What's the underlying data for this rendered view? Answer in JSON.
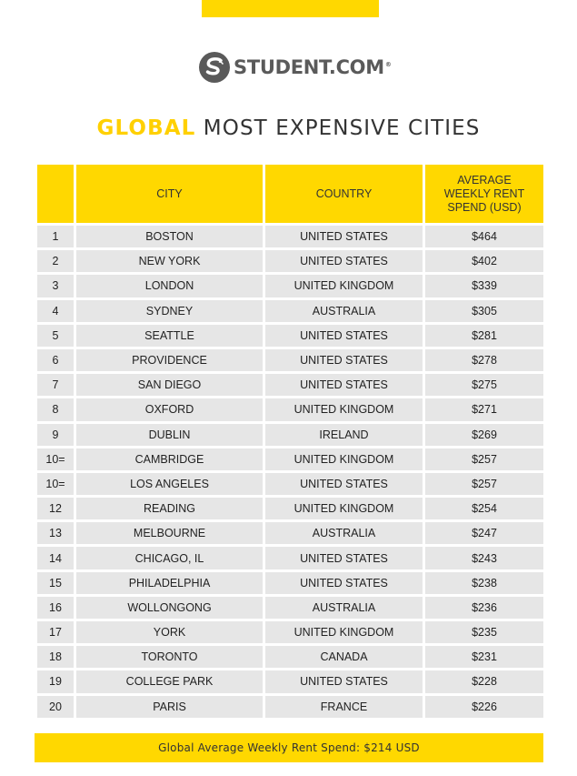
{
  "brand": {
    "logo_text": "STUDENT.COM",
    "registered_mark": "®",
    "accent_color": "#FFD800"
  },
  "title": {
    "accent": "GLOBAL",
    "rest": "MOST EXPENSIVE CITIES"
  },
  "table": {
    "headers": {
      "rank": "",
      "city": "CITY",
      "country": "COUNTRY",
      "rent_line1": "AVERAGE",
      "rent_line2": "WEEKLY RENT",
      "rent_line3": "SPEND (USD)"
    },
    "rows": [
      {
        "rank": "1",
        "city": "BOSTON",
        "country": "UNITED STATES",
        "rent": "$464"
      },
      {
        "rank": "2",
        "city": "NEW YORK",
        "country": "UNITED STATES",
        "rent": "$402"
      },
      {
        "rank": "3",
        "city": "LONDON",
        "country": "UNITED KINGDOM",
        "rent": "$339"
      },
      {
        "rank": "4",
        "city": "SYDNEY",
        "country": "AUSTRALIA",
        "rent": "$305"
      },
      {
        "rank": "5",
        "city": "SEATTLE",
        "country": "UNITED STATES",
        "rent": "$281"
      },
      {
        "rank": "6",
        "city": "PROVIDENCE",
        "country": "UNITED STATES",
        "rent": "$278"
      },
      {
        "rank": "7",
        "city": "SAN DIEGO",
        "country": "UNITED STATES",
        "rent": "$275"
      },
      {
        "rank": "8",
        "city": "OXFORD",
        "country": "UNITED KINGDOM",
        "rent": "$271"
      },
      {
        "rank": "9",
        "city": "DUBLIN",
        "country": "IRELAND",
        "rent": "$269"
      },
      {
        "rank": "10=",
        "city": "CAMBRIDGE",
        "country": "UNITED KINGDOM",
        "rent": "$257"
      },
      {
        "rank": "10=",
        "city": "LOS ANGELES",
        "country": "UNITED STATES",
        "rent": "$257"
      },
      {
        "rank": "12",
        "city": "READING",
        "country": "UNITED KINGDOM",
        "rent": "$254"
      },
      {
        "rank": "13",
        "city": "MELBOURNE",
        "country": "AUSTRALIA",
        "rent": "$247"
      },
      {
        "rank": "14",
        "city": "CHICAGO, IL",
        "country": "UNITED STATES",
        "rent": "$243"
      },
      {
        "rank": "15",
        "city": "PHILADELPHIA",
        "country": "UNITED STATES",
        "rent": "$238"
      },
      {
        "rank": "16",
        "city": "WOLLONGONG",
        "country": "AUSTRALIA",
        "rent": "$236"
      },
      {
        "rank": "17",
        "city": "YORK",
        "country": "UNITED KINGDOM",
        "rent": "$235"
      },
      {
        "rank": "18",
        "city": "TORONTO",
        "country": "CANADA",
        "rent": "$231"
      },
      {
        "rank": "19",
        "city": "COLLEGE PARK",
        "country": "UNITED STATES",
        "rent": "$228"
      },
      {
        "rank": "20",
        "city": "PARIS",
        "country": "FRANCE",
        "rent": "$226"
      }
    ]
  },
  "footer": {
    "text": "Global Average Weekly Rent Spend: $214 USD"
  }
}
